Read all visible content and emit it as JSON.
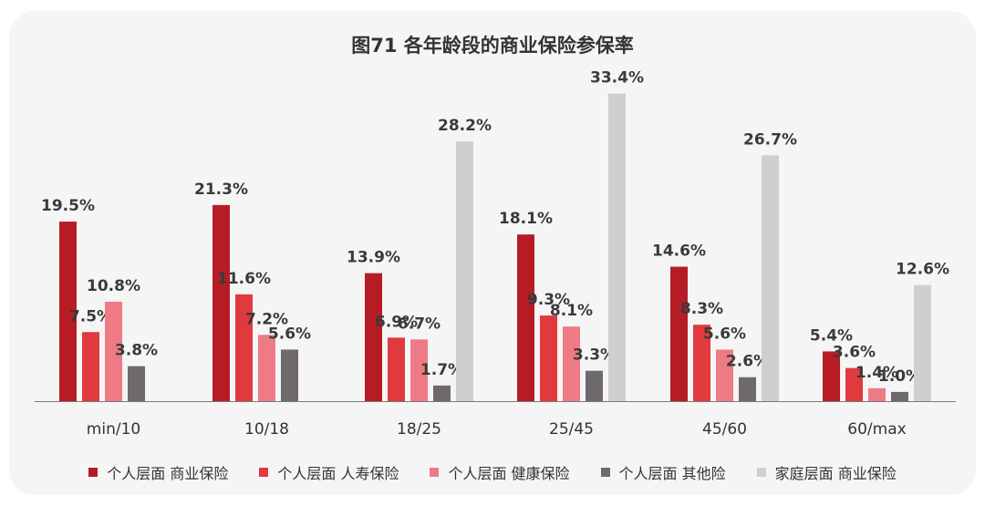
{
  "chart_data": {
    "type": "bar",
    "title": "图71  各年龄段的商业保险参保率",
    "categories": [
      "min/10",
      "10/18",
      "18/25",
      "25/45",
      "45/60",
      "60/max"
    ],
    "series": [
      {
        "name": "个人层面 商业保险",
        "color": "#b71c24",
        "values": [
          19.5,
          21.3,
          13.9,
          18.1,
          14.6,
          5.4
        ],
        "labels": [
          "19.5%",
          "21.3%",
          "13.9%",
          "18.1%",
          "14.6%",
          "5.4%"
        ]
      },
      {
        "name": "个人层面 人寿保险",
        "color": "#e03a3e",
        "values": [
          7.5,
          11.6,
          6.9,
          9.3,
          8.3,
          3.6
        ],
        "labels": [
          "7.5%",
          "11.6%",
          "6.9%",
          "9.3%",
          "8.3%",
          "3.6%"
        ]
      },
      {
        "name": "个人层面 健康保险",
        "color": "#ee7a85",
        "values": [
          10.8,
          7.2,
          6.7,
          8.1,
          5.6,
          1.4
        ],
        "labels": [
          "10.8%",
          "7.2%",
          "6.7%",
          "8.1%",
          "5.6%",
          "1.4%"
        ]
      },
      {
        "name": "个人层面 其他险",
        "color": "#6e6a6b",
        "values": [
          3.8,
          5.6,
          1.7,
          3.3,
          2.6,
          1.0
        ],
        "labels": [
          "3.8%",
          "5.6%",
          "1.7%",
          "3.3%",
          "2.6%",
          "1.0%"
        ]
      },
      {
        "name": "家庭层面 商业保险",
        "color": "#cfcfcf",
        "values": [
          null,
          null,
          28.2,
          33.4,
          26.7,
          12.6
        ],
        "labels": [
          null,
          null,
          "28.2%",
          "33.4%",
          "26.7%",
          "12.6%"
        ]
      }
    ],
    "ylim": [
      0,
      34
    ],
    "grid": false,
    "legend_position": "bottom"
  }
}
